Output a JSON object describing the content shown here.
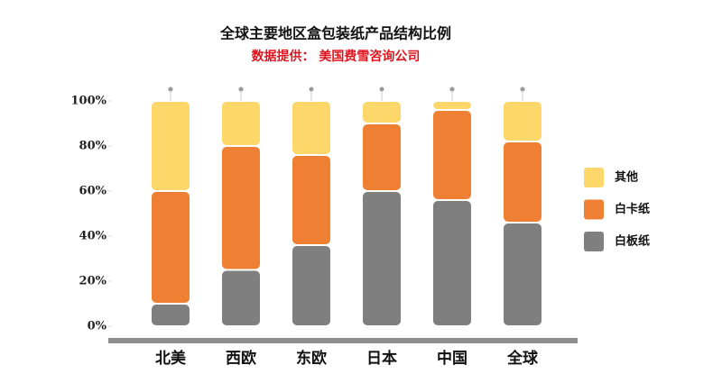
{
  "chart_data": {
    "type": "stacked_bar",
    "title": "全球主要地区盒包装纸产品结构比例",
    "subtitle": "数据提供： 美国费雪咨询公司",
    "categories": [
      "北美",
      "西欧",
      "东欧",
      "日本",
      "中国",
      "全球"
    ],
    "series": [
      {
        "name": "白板纸",
        "color": "#7f7f7f",
        "values": [
          10,
          25,
          36,
          60,
          56,
          46
        ]
      },
      {
        "name": "白卡纸",
        "color": "#ef8033",
        "values": [
          50,
          55,
          40,
          30,
          40,
          36
        ]
      },
      {
        "name": "其他",
        "color": "#fdd76a",
        "values": [
          40,
          20,
          24,
          10,
          4,
          18
        ]
      }
    ],
    "ylim": [
      0,
      100
    ],
    "yticks": [
      {
        "value": 0,
        "label": "0%"
      },
      {
        "value": 20,
        "label": "20%"
      },
      {
        "value": 40,
        "label": "40%"
      },
      {
        "value": 60,
        "label": "60%"
      },
      {
        "value": 80,
        "label": "80%"
      },
      {
        "value": 100,
        "label": "100%"
      }
    ],
    "legend": "right"
  }
}
